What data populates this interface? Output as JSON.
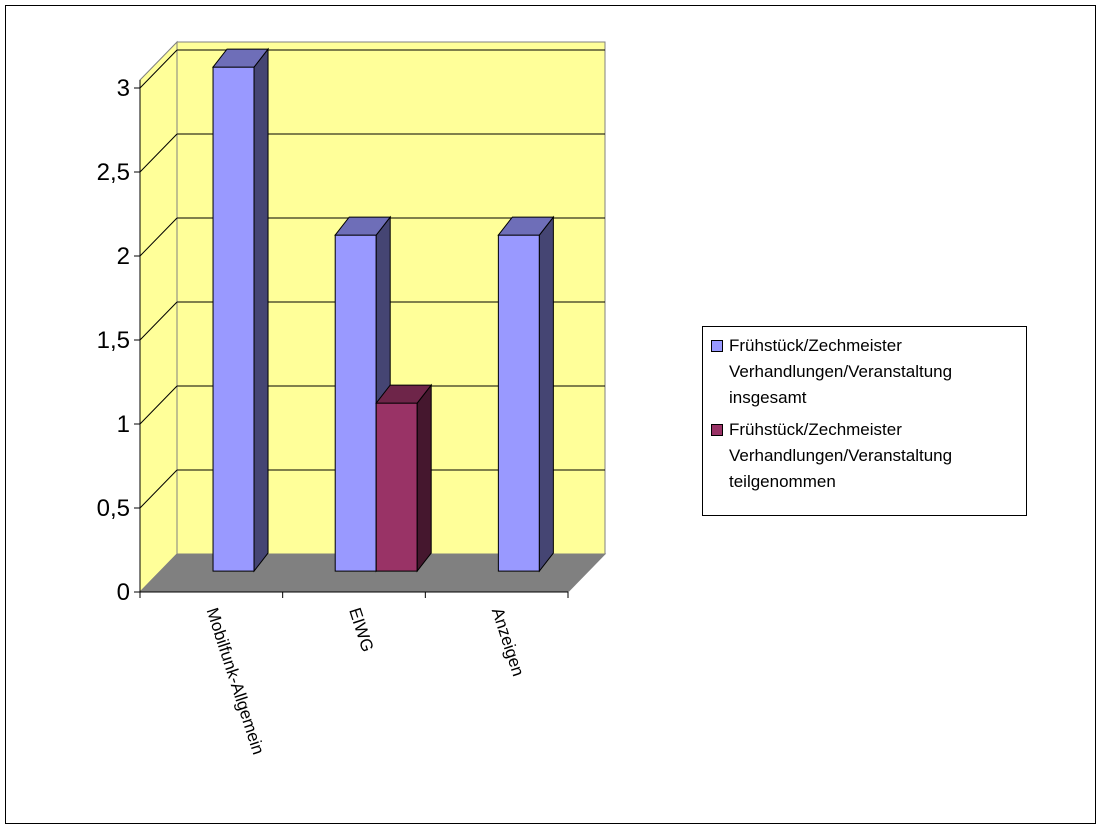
{
  "chart_data": {
    "type": "bar",
    "title": "",
    "xlabel": "",
    "ylabel": "",
    "categories": [
      "Mobilfunk-Allgemein",
      "EIWG",
      "Anzeigen"
    ],
    "ylim": [
      0,
      3
    ],
    "yticks": [
      "0",
      "0,5",
      "1",
      "1,5",
      "2",
      "2,5",
      "3"
    ],
    "grid": true,
    "legend_position": "right",
    "series": [
      {
        "name": "Frühstück/Zechmeister Verhandlungen/Veranstaltung insgesamt",
        "values": [
          3,
          2,
          2
        ],
        "color": "#9999ff"
      },
      {
        "name": "Frühstück/Zechmeister Verhandlungen/Veranstaltung teilgenommen",
        "values": [
          null,
          1,
          null
        ],
        "color": "#993366"
      }
    ],
    "wall_color": "#ffff99",
    "floor_color": "#808080"
  }
}
